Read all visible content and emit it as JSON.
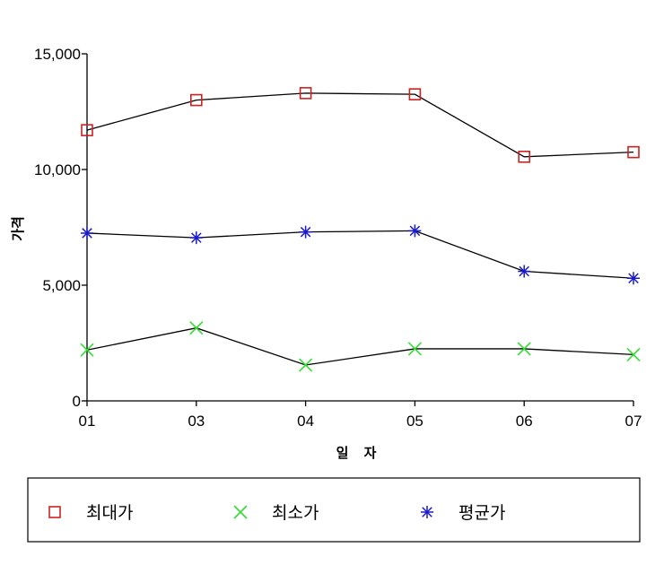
{
  "chart_data": {
    "type": "line",
    "categories": [
      "01",
      "03",
      "04",
      "05",
      "06",
      "07"
    ],
    "series": [
      {
        "name": "최대가",
        "color": "#cc2222",
        "marker": "square",
        "values": [
          11700,
          13000,
          13300,
          13250,
          10550,
          10750
        ]
      },
      {
        "name": "최소가",
        "color": "#33dd33",
        "marker": "x",
        "values": [
          2200,
          3150,
          1550,
          2250,
          2250,
          2000
        ]
      },
      {
        "name": "평균가",
        "color": "#1a1acc",
        "marker": "asterisk",
        "values": [
          7250,
          7050,
          7300,
          7350,
          5600,
          5300
        ]
      }
    ],
    "xlabel": "일 자",
    "ylabel": "가격",
    "ylim": [
      0,
      15000
    ],
    "yticks": [
      0,
      5000,
      10000,
      15000
    ],
    "ytick_labels": [
      "0",
      "5,000",
      "10,000",
      "15,000"
    ],
    "line_color": "#000000",
    "legend_position": "bottom",
    "grid": false
  }
}
